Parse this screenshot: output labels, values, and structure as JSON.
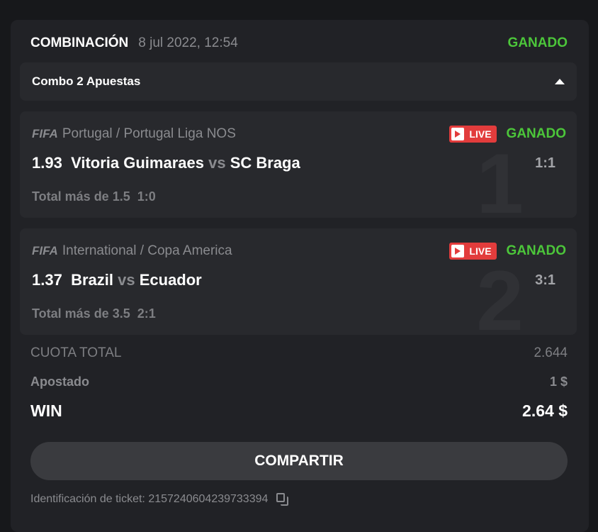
{
  "header": {
    "title": "COMBINACIÓN",
    "date": "8 jul 2022, 12:54",
    "status": "GANADO"
  },
  "combo": {
    "label": "Combo 2 Apuestas"
  },
  "bets": [
    {
      "index": "1",
      "sport": "FIFA",
      "league": "Portugal / Portugal Liga NOS",
      "live": "LIVE",
      "status": "GANADO",
      "odds": "1.93",
      "home": "Vitoria Guimaraes",
      "vs": "vs",
      "away": "SC Braga",
      "score": "1:1",
      "selection": "Total más de 1.5",
      "selection_score": "1:0"
    },
    {
      "index": "2",
      "sport": "FIFA",
      "league": "International / Copa America",
      "live": "LIVE",
      "status": "GANADO",
      "odds": "1.37",
      "home": "Brazil",
      "vs": "vs",
      "away": "Ecuador",
      "score": "3:1",
      "selection": "Total más de 3.5",
      "selection_score": "2:1"
    }
  ],
  "summary": {
    "total_odds_label": "CUOTA TOTAL",
    "total_odds": "2.644",
    "stake_label": "Apostado",
    "stake": "1 $",
    "win_label": "WIN",
    "win": "2.64 $"
  },
  "share_label": "COMPARTIR",
  "ticket": {
    "label": "Identificación de ticket:",
    "id": "2157240604239733394"
  },
  "colors": {
    "win_green": "#4cc63a",
    "live_red": "#e23c3c"
  }
}
